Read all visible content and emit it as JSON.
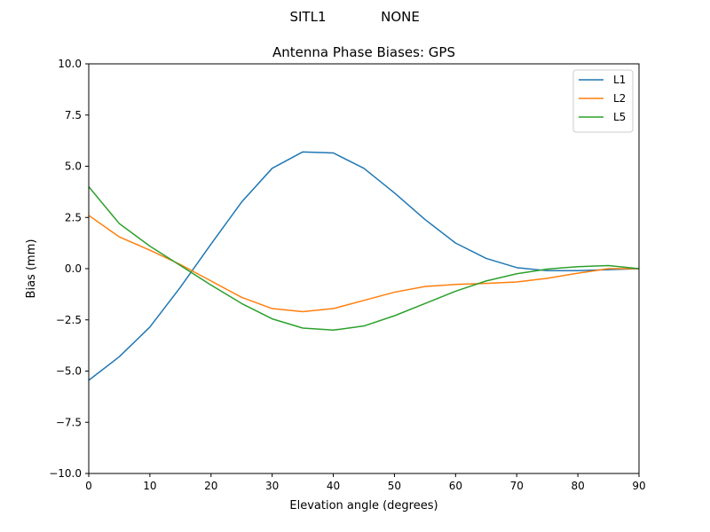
{
  "suptitle": {
    "station": "SITL1",
    "antenna": "NONE"
  },
  "chart_data": {
    "type": "line",
    "title": "Antenna Phase Biases: GPS",
    "xlabel": "Elevation angle (degrees)",
    "ylabel": "Bias (mm)",
    "xlim": [
      0,
      90
    ],
    "ylim": [
      -10,
      10
    ],
    "xticks": [
      0,
      10,
      20,
      30,
      40,
      50,
      60,
      70,
      80,
      90
    ],
    "yticks": [
      -10.0,
      -7.5,
      -5.0,
      -2.5,
      0.0,
      2.5,
      5.0,
      7.5,
      10.0
    ],
    "xtick_labels": [
      "0",
      "10",
      "20",
      "30",
      "40",
      "50",
      "60",
      "70",
      "80",
      "90"
    ],
    "ytick_labels": [
      "−10.0",
      "−7.5",
      "−5.0",
      "−2.5",
      "0.0",
      "2.5",
      "5.0",
      "7.5",
      "10.0"
    ],
    "grid": false,
    "legend_position": "top-right",
    "x": [
      0,
      5,
      10,
      15,
      20,
      25,
      30,
      35,
      40,
      45,
      50,
      55,
      60,
      65,
      70,
      75,
      80,
      85,
      90
    ],
    "series": [
      {
        "name": "L1",
        "color": "#1f77b4",
        "values": [
          -5.45,
          -4.3,
          -2.85,
          -0.9,
          1.2,
          3.25,
          4.9,
          5.7,
          5.65,
          4.9,
          3.7,
          2.4,
          1.25,
          0.5,
          0.05,
          -0.1,
          -0.1,
          -0.05,
          0.0
        ]
      },
      {
        "name": "L2",
        "color": "#ff7f0e",
        "values": [
          2.6,
          1.55,
          0.9,
          0.2,
          -0.6,
          -1.4,
          -1.95,
          -2.1,
          -1.95,
          -1.55,
          -1.15,
          -0.87,
          -0.77,
          -0.72,
          -0.65,
          -0.47,
          -0.22,
          0.0,
          0.0
        ]
      },
      {
        "name": "L5",
        "color": "#2ca02c",
        "values": [
          4.0,
          2.2,
          1.1,
          0.15,
          -0.8,
          -1.7,
          -2.45,
          -2.9,
          -3.0,
          -2.8,
          -2.3,
          -1.7,
          -1.1,
          -0.6,
          -0.25,
          -0.02,
          0.1,
          0.15,
          0.0
        ]
      }
    ]
  }
}
